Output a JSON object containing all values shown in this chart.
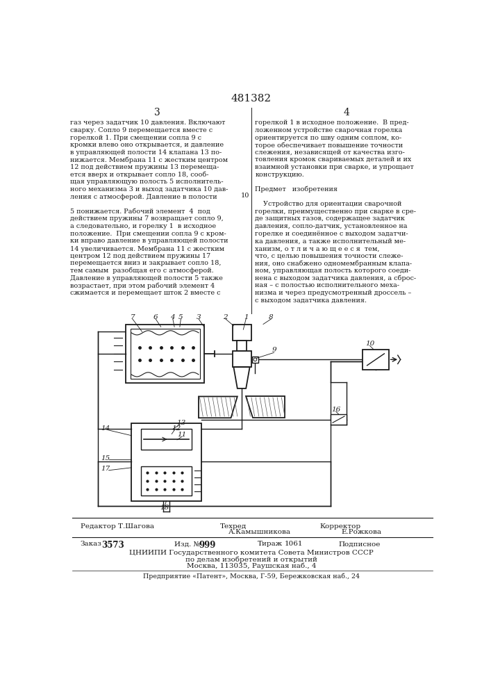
{
  "patent_number": "481382",
  "page_col_left": "3",
  "page_col_right": "4",
  "bg_color": "#ffffff",
  "text_color": "#1a1a1a",
  "col_left_text": [
    "газ через задатчик 10 давления. Включают",
    "сварку. Сопло 9 перемещается вместе с",
    "горелкой 1. При смещении сопла 9 с",
    "кромки влево оно открывается, и давление",
    "в управляющей полости 14 клапана 13 по-",
    "нижается. Мембрана 11 с жестким центром",
    "12 под действием пружины 13 перемеща-",
    "ется вверх и открывает сопло 18, сооб-",
    "щая управляющую полость 5 исполнитель-",
    "ного механизма 3 и выход задатчика 10 дав-",
    "ления с атмосферой. Давление в полости",
    "",
    "5 понижается. Рабочий элемент  4  под",
    "действием пружины 7 возвращает сопло 9,",
    "а следовательно, и горелку 1  в исходное",
    "положение.  При смещении сопла 9 с кром-",
    "ки вправо давление в управляющей полости",
    "14 увеличивается. Мембрана 11 с жестким",
    "центром 12 под действием пружины 17",
    "перемещается вниз и закрывает сопло 18,",
    "тем самым  разобщая его с атмосферой.",
    "Давление в управляющей полости 5 также",
    "возрастает, при этом рабочий элемент 4",
    "сжимается и перемещает шток 2 вместе с"
  ],
  "col_right_text": [
    "горелкой 1 в исходное положение.  В пред-",
    "ложенном устройстве сварочная горелка",
    "ориентируется по шву одним соплом, ко-",
    "торое обеспечивает повышение точности",
    "слежения, независящей от качества изго-",
    "товления кромок свариваемых деталей и их",
    "взаимной установки при сварке, и упрощает",
    "конструкцию.",
    "",
    "Предмет   изобретения",
    "",
    "    Устройство для ориентации сварочной",
    "горелки, преимущественно при сварке в сре-",
    "де защитных газов, содержащее задатчик",
    "давления, сопло-датчик, установленное на",
    "горелке и соединённое с выходом задатчи-",
    "ка давления, а также исполнительный ме-",
    "ханизм, о т л и ч а ю щ е е с я  тем,",
    "что, с целью повышения точности слеже-",
    "ния, оно снабжено одномембранным клапа-",
    "ном, управляющая полость которого соеди-",
    "нена с выходом задатчика давления, а сброс-",
    "ная – с полостью исполнительного меха-",
    "низма и через предусмотренный дроссель –",
    "с выходом задатчика давления."
  ],
  "footer": {
    "editor_label": "Редактор Т.Шагова",
    "techred_label": "Техред",
    "corrector_label": "Корректор",
    "techred_name": "А.Камышникова",
    "corrector_name": "Е.Рожкова",
    "order_label": "Заказ",
    "order_num": "3573",
    "izd_label": "Изд. №",
    "izd_num": "999",
    "tirazh_label": "Тираж",
    "tirazh_num": "1061",
    "podpisnoe": "Подписное",
    "inst1": "ЦНИИПИ Государственного комитета Совета Министров СССР",
    "inst2": "по делам изобретений и открытий",
    "inst3": "Москва, 113035, Раушская наб., 4",
    "enterprise": "Предприятие «Патент», Москва, Г-59, Бережковская наб., 24"
  }
}
